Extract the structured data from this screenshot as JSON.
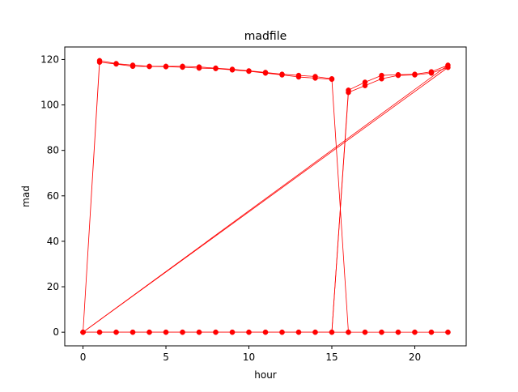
{
  "chart_data": {
    "type": "line",
    "title": "madfile",
    "xlabel": "hour",
    "ylabel": "mad",
    "xlim": [
      -1.1,
      23.1
    ],
    "ylim": [
      -6,
      125.5
    ],
    "xticks": [
      0,
      5,
      10,
      15,
      20
    ],
    "yticks": [
      0,
      20,
      40,
      60,
      80,
      100,
      120
    ],
    "grid": false,
    "legend": "none",
    "colors": {
      "series": "#ff0000",
      "axes": "#000000",
      "background": "#ffffff"
    },
    "series": [
      {
        "x": [
          0,
          1,
          2,
          3,
          4,
          5,
          6,
          7,
          8,
          9,
          10,
          11,
          12,
          13,
          14,
          15,
          16,
          17,
          18,
          19,
          20,
          21,
          22,
          0,
          1,
          2,
          3,
          4,
          5,
          6,
          7,
          8,
          9,
          10,
          11,
          12,
          13,
          14,
          15,
          16,
          17,
          18,
          19,
          20,
          21,
          22,
          0,
          1,
          2,
          3,
          4,
          5,
          6,
          7,
          8,
          9,
          10,
          11,
          12,
          13,
          14,
          15,
          16,
          17,
          18,
          19,
          20,
          21,
          22
        ],
        "y": [
          0,
          119.5,
          118.2,
          117.5,
          117,
          117,
          117,
          116.7,
          116.2,
          115.7,
          115,
          114.3,
          113.5,
          113,
          112.5,
          111.5,
          0,
          0,
          0,
          0,
          0,
          0,
          0,
          0,
          0,
          0,
          0,
          0,
          0,
          0,
          0,
          0,
          0,
          0,
          0,
          0,
          0,
          0,
          0,
          106.5,
          110,
          113,
          113.3,
          113.5,
          114.6,
          117.5,
          0,
          118.8,
          118,
          117,
          116.9,
          116.8,
          116.6,
          116.2,
          116,
          115.4,
          114.8,
          114,
          113.2,
          112.3,
          111.8,
          111.3,
          0,
          0,
          0,
          0,
          0,
          0,
          0
        ]
      },
      {
        "x": [
          0,
          1,
          2,
          3,
          4,
          5,
          6,
          7,
          8,
          9,
          10,
          11,
          12,
          13,
          14,
          15,
          16,
          17,
          18,
          19,
          20,
          21,
          22,
          0
        ],
        "y": [
          0,
          0,
          0,
          0,
          0,
          0,
          0,
          0,
          0,
          0,
          0,
          0,
          0,
          0,
          0,
          0,
          105.5,
          108.5,
          111.5,
          113,
          113.2,
          114,
          116.5,
          0
        ]
      }
    ]
  }
}
